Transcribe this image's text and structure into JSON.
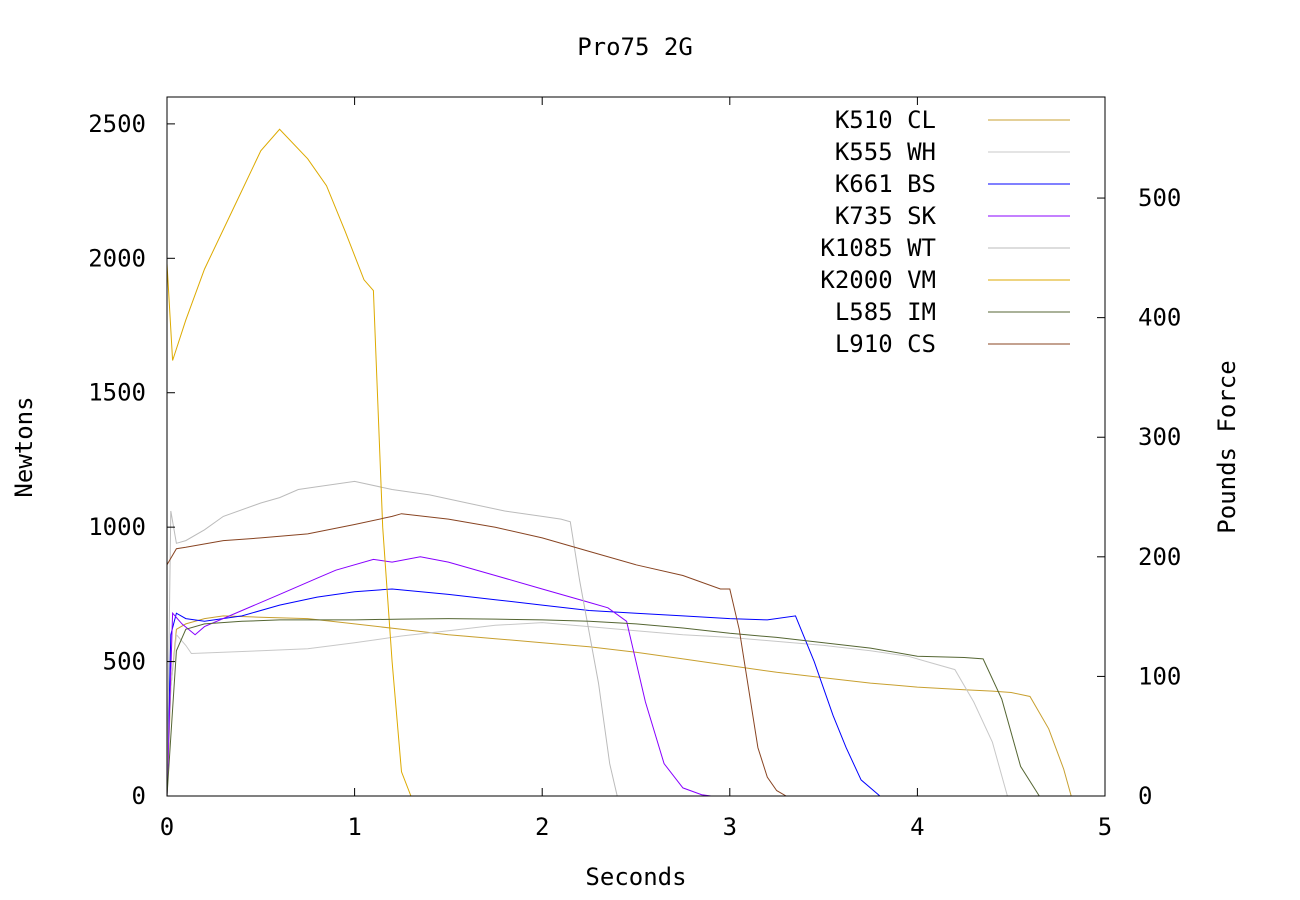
{
  "chart_data": {
    "type": "line",
    "title": "Pro75 2G",
    "xlabel": "Seconds",
    "ylabel": "Newtons",
    "y2label": "Pounds Force",
    "xlim": [
      0,
      5
    ],
    "ylim": [
      0,
      2600
    ],
    "y2lim": [
      0,
      584.5
    ],
    "x_ticks": [
      "0",
      "1",
      "2",
      "3",
      "4",
      "5"
    ],
    "y_ticks": [
      "0",
      "500",
      "1000",
      "1500",
      "2000",
      "2500"
    ],
    "y2_ticks": [
      "0",
      "100",
      "200",
      "300",
      "400",
      "500"
    ],
    "grid": false,
    "legend": "top-right",
    "series": [
      {
        "name": "K510 CL",
        "color": "#c8a030",
        "points": [
          [
            0.0,
            0
          ],
          [
            0.02,
            400
          ],
          [
            0.05,
            620
          ],
          [
            0.1,
            640
          ],
          [
            0.2,
            660
          ],
          [
            0.3,
            670
          ],
          [
            0.5,
            665
          ],
          [
            0.75,
            660
          ],
          [
            1.0,
            640
          ],
          [
            1.25,
            620
          ],
          [
            1.5,
            600
          ],
          [
            1.75,
            585
          ],
          [
            2.0,
            570
          ],
          [
            2.25,
            555
          ],
          [
            2.5,
            535
          ],
          [
            2.75,
            510
          ],
          [
            3.0,
            485
          ],
          [
            3.25,
            460
          ],
          [
            3.5,
            440
          ],
          [
            3.75,
            420
          ],
          [
            4.0,
            405
          ],
          [
            4.25,
            395
          ],
          [
            4.4,
            390
          ],
          [
            4.5,
            385
          ],
          [
            4.6,
            370
          ],
          [
            4.7,
            250
          ],
          [
            4.78,
            100
          ],
          [
            4.82,
            0
          ]
        ]
      },
      {
        "name": "K555 WH",
        "color": "#c8c8c8",
        "points": [
          [
            0.0,
            50
          ],
          [
            0.02,
            400
          ],
          [
            0.05,
            600
          ],
          [
            0.1,
            560
          ],
          [
            0.13,
            530
          ],
          [
            0.3,
            535
          ],
          [
            0.5,
            540
          ],
          [
            0.75,
            548
          ],
          [
            1.0,
            570
          ],
          [
            1.25,
            595
          ],
          [
            1.5,
            615
          ],
          [
            1.75,
            635
          ],
          [
            2.0,
            645
          ],
          [
            2.25,
            630
          ],
          [
            2.5,
            615
          ],
          [
            2.75,
            600
          ],
          [
            3.0,
            590
          ],
          [
            3.25,
            575
          ],
          [
            3.5,
            560
          ],
          [
            3.75,
            540
          ],
          [
            3.95,
            520
          ],
          [
            4.05,
            500
          ],
          [
            4.2,
            470
          ],
          [
            4.3,
            350
          ],
          [
            4.4,
            200
          ],
          [
            4.48,
            0
          ]
        ]
      },
      {
        "name": "K661 BS",
        "color": "#0000ff",
        "points": [
          [
            0.0,
            0
          ],
          [
            0.02,
            600
          ],
          [
            0.05,
            680
          ],
          [
            0.1,
            660
          ],
          [
            0.2,
            650
          ],
          [
            0.4,
            670
          ],
          [
            0.6,
            710
          ],
          [
            0.8,
            740
          ],
          [
            1.0,
            760
          ],
          [
            1.2,
            770
          ],
          [
            1.5,
            750
          ],
          [
            1.75,
            730
          ],
          [
            2.0,
            710
          ],
          [
            2.25,
            690
          ],
          [
            2.5,
            680
          ],
          [
            2.75,
            670
          ],
          [
            3.0,
            660
          ],
          [
            3.2,
            655
          ],
          [
            3.35,
            670
          ],
          [
            3.45,
            500
          ],
          [
            3.55,
            300
          ],
          [
            3.62,
            180
          ],
          [
            3.7,
            60
          ],
          [
            3.8,
            0
          ]
        ]
      },
      {
        "name": "K735 SK",
        "color": "#8800ff",
        "points": [
          [
            0.0,
            0
          ],
          [
            0.03,
            680
          ],
          [
            0.08,
            640
          ],
          [
            0.15,
            600
          ],
          [
            0.2,
            630
          ],
          [
            0.4,
            690
          ],
          [
            0.6,
            750
          ],
          [
            0.8,
            810
          ],
          [
            0.9,
            840
          ],
          [
            1.1,
            880
          ],
          [
            1.2,
            870
          ],
          [
            1.35,
            890
          ],
          [
            1.5,
            870
          ],
          [
            1.75,
            820
          ],
          [
            2.0,
            770
          ],
          [
            2.25,
            720
          ],
          [
            2.35,
            700
          ],
          [
            2.45,
            650
          ],
          [
            2.55,
            350
          ],
          [
            2.65,
            120
          ],
          [
            2.75,
            30
          ],
          [
            2.85,
            5
          ],
          [
            2.9,
            0
          ]
        ]
      },
      {
        "name": "K1085 WT",
        "color": "#bbbbbb",
        "points": [
          [
            0.0,
            0
          ],
          [
            0.02,
            1060
          ],
          [
            0.05,
            940
          ],
          [
            0.1,
            950
          ],
          [
            0.2,
            990
          ],
          [
            0.3,
            1040
          ],
          [
            0.5,
            1090
          ],
          [
            0.6,
            1110
          ],
          [
            0.7,
            1140
          ],
          [
            0.8,
            1150
          ],
          [
            1.0,
            1170
          ],
          [
            1.2,
            1140
          ],
          [
            1.4,
            1120
          ],
          [
            1.6,
            1090
          ],
          [
            1.8,
            1060
          ],
          [
            2.0,
            1040
          ],
          [
            2.05,
            1035
          ],
          [
            2.1,
            1030
          ],
          [
            2.15,
            1020
          ],
          [
            2.2,
            800
          ],
          [
            2.3,
            420
          ],
          [
            2.36,
            120
          ],
          [
            2.4,
            0
          ]
        ]
      },
      {
        "name": "K2000 VM",
        "color": "#ddaa00",
        "points": [
          [
            0.0,
            1980
          ],
          [
            0.03,
            1620
          ],
          [
            0.1,
            1770
          ],
          [
            0.2,
            1960
          ],
          [
            0.35,
            2180
          ],
          [
            0.5,
            2400
          ],
          [
            0.6,
            2480
          ],
          [
            0.75,
            2370
          ],
          [
            0.85,
            2270
          ],
          [
            0.95,
            2100
          ],
          [
            1.05,
            1920
          ],
          [
            1.1,
            1880
          ],
          [
            1.15,
            1000
          ],
          [
            1.2,
            500
          ],
          [
            1.25,
            90
          ],
          [
            1.3,
            0
          ]
        ]
      },
      {
        "name": "L585 IM",
        "color": "#556633",
        "points": [
          [
            0.0,
            0
          ],
          [
            0.02,
            220
          ],
          [
            0.05,
            540
          ],
          [
            0.1,
            620
          ],
          [
            0.2,
            640
          ],
          [
            0.4,
            650
          ],
          [
            0.6,
            655
          ],
          [
            0.8,
            655
          ],
          [
            1.0,
            655
          ],
          [
            1.25,
            658
          ],
          [
            1.5,
            660
          ],
          [
            1.75,
            658
          ],
          [
            2.0,
            655
          ],
          [
            2.25,
            650
          ],
          [
            2.5,
            640
          ],
          [
            2.75,
            625
          ],
          [
            3.0,
            605
          ],
          [
            3.25,
            590
          ],
          [
            3.5,
            570
          ],
          [
            3.75,
            550
          ],
          [
            4.0,
            520
          ],
          [
            4.25,
            515
          ],
          [
            4.35,
            510
          ],
          [
            4.45,
            360
          ],
          [
            4.55,
            110
          ],
          [
            4.65,
            0
          ]
        ]
      },
      {
        "name": "L910 CS",
        "color": "#884422",
        "points": [
          [
            0.0,
            860
          ],
          [
            0.05,
            920
          ],
          [
            0.1,
            925
          ],
          [
            0.3,
            950
          ],
          [
            0.5,
            960
          ],
          [
            0.75,
            975
          ],
          [
            1.0,
            1010
          ],
          [
            1.2,
            1040
          ],
          [
            1.25,
            1050
          ],
          [
            1.5,
            1030
          ],
          [
            1.75,
            1000
          ],
          [
            2.0,
            960
          ],
          [
            2.25,
            910
          ],
          [
            2.5,
            860
          ],
          [
            2.75,
            820
          ],
          [
            2.95,
            770
          ],
          [
            3.0,
            770
          ],
          [
            3.05,
            620
          ],
          [
            3.15,
            180
          ],
          [
            3.2,
            70
          ],
          [
            3.25,
            20
          ],
          [
            3.3,
            0
          ]
        ]
      }
    ]
  }
}
